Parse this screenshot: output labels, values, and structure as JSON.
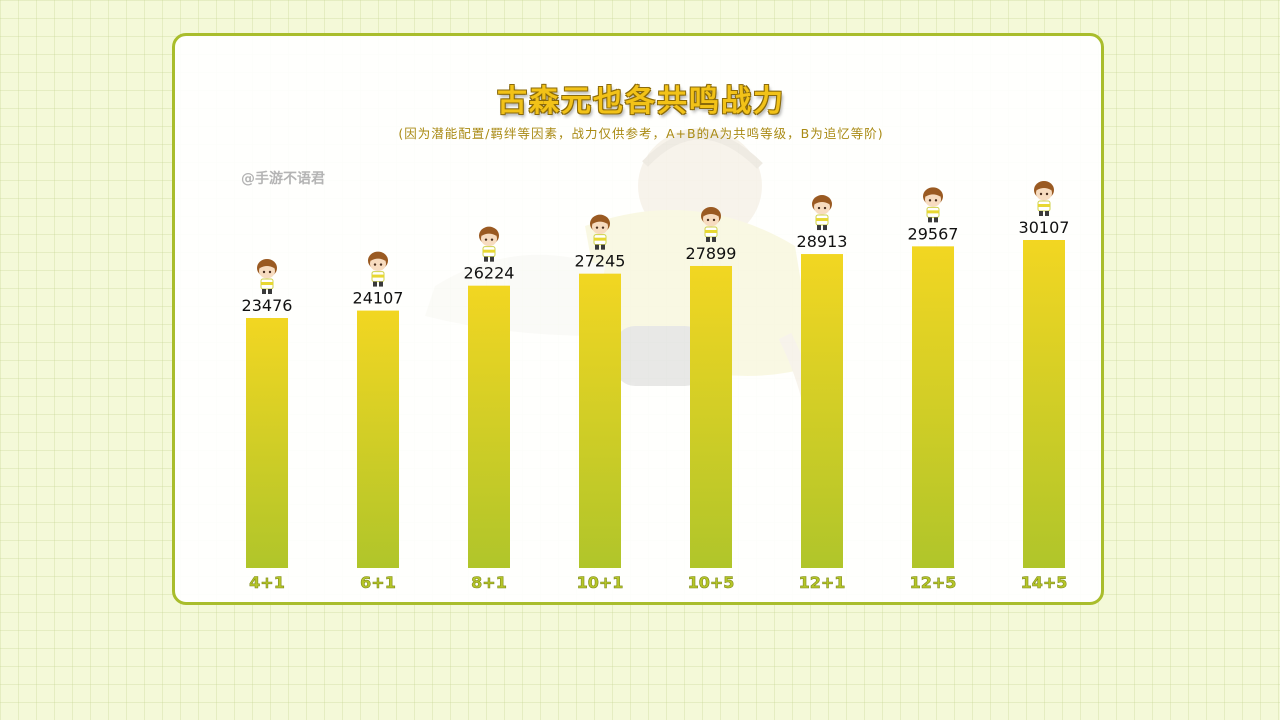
{
  "title": "古森元也各共鸣战力",
  "subtitle": "(因为潜能配置/羁绊等因素，战力仅供参考，A+B的A为共鸣等级，B为追忆等阶)",
  "watermark": "@手游不语君",
  "colors": {
    "bar_top": "#f2d622",
    "bar_bottom": "#b0c52a",
    "border": "#a9bd2c",
    "title": "#f2c218",
    "subtitle": "#a98a14",
    "category_label": "#b6c628"
  },
  "chart_data": {
    "type": "bar",
    "title": "古森元也各共鸣战力",
    "subtitle": "(因为潜能配置/羁绊等因素，战力仅供参考，A+B的A为共鸣等级，B为追忆等阶)",
    "xlabel": "",
    "ylabel": "",
    "categories": [
      "4+1",
      "6+1",
      "8+1",
      "10+1",
      "10+5",
      "12+1",
      "12+5",
      "14+5"
    ],
    "values": [
      23476,
      24107,
      26224,
      27245,
      27899,
      28913,
      29567,
      30107
    ],
    "data_labels": [
      "23476",
      "24107",
      "26224",
      "27245",
      "27899",
      "28913",
      "29567",
      "30107"
    ],
    "marker_icon": "chibi-character-icon",
    "grid": false,
    "legend": "none"
  }
}
